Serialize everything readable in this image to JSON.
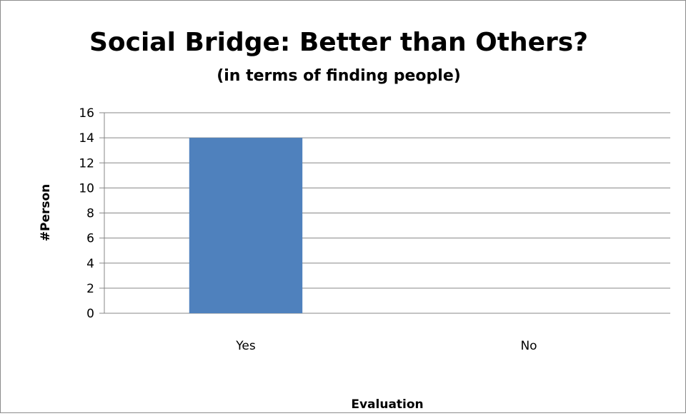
{
  "chart_data": {
    "type": "bar",
    "title": "Social Bridge: Better than Others?",
    "subtitle": "(in terms of finding people)",
    "xlabel": "Evaluation",
    "ylabel": "#Person",
    "categories": [
      "Yes",
      "No"
    ],
    "values": [
      14,
      0
    ],
    "ylim": [
      0,
      16
    ],
    "yticks": [
      0,
      2,
      4,
      6,
      8,
      10,
      12,
      14,
      16
    ],
    "grid": true,
    "legend": "none",
    "bar_color": "#4f81bd",
    "grid_color": "#878787"
  }
}
